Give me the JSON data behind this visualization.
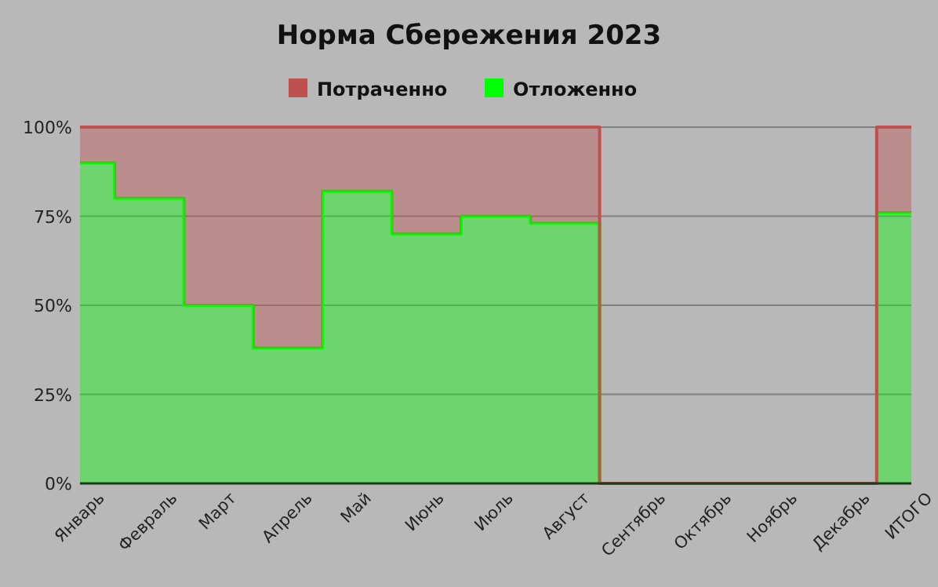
{
  "chart_data": {
    "type": "area",
    "title": "Норма Сбережения 2023",
    "stacked": true,
    "legend": "top",
    "grid": "y",
    "categories": [
      "Январь",
      "Февраль",
      "Март",
      "Апрель",
      "Май",
      "Июнь",
      "Июль",
      "Август",
      "Сентябрь",
      "Октябрь",
      "Ноябрь",
      "Декабрь",
      "ИТОГО"
    ],
    "ylim": [
      0,
      100
    ],
    "yticks": [
      {
        "value": 0,
        "label": "0%"
      },
      {
        "value": 25,
        "label": "25%"
      },
      {
        "value": 50,
        "label": "50%"
      },
      {
        "value": 75,
        "label": "75%"
      },
      {
        "value": 100,
        "label": "100%"
      }
    ],
    "series": [
      {
        "name": "Отложенно",
        "color": "#00ff00",
        "values": [
          90,
          80,
          50,
          38,
          82,
          70,
          75,
          73,
          0,
          0,
          0,
          0,
          76
        ]
      },
      {
        "name": "Потраченно",
        "color": "#c0504d",
        "values": [
          10,
          20,
          50,
          62,
          18,
          30,
          25,
          27,
          0,
          0,
          0,
          0,
          24
        ]
      }
    ]
  }
}
